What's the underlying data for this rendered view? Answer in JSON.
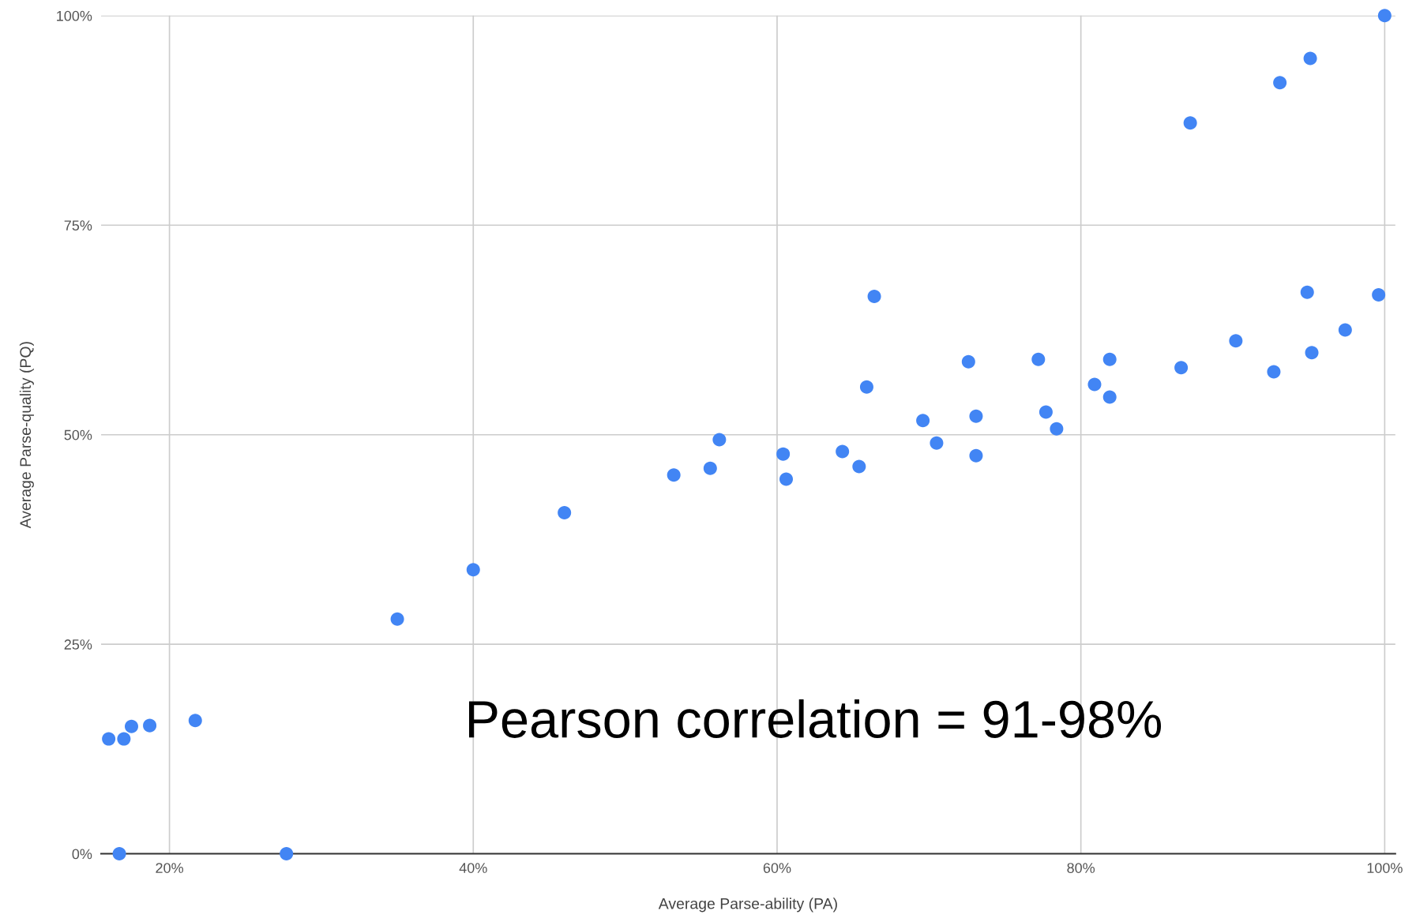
{
  "chart_data": {
    "type": "scatter",
    "xlabel": "Average Parse-ability (PA)",
    "ylabel": "Average Parse-quality (PQ)",
    "x": [
      16.0,
      17.0,
      17.5,
      18.7,
      21.7,
      16.7,
      27.7,
      35.0,
      40.0,
      46.0,
      53.2,
      55.6,
      56.2,
      60.4,
      60.6,
      64.3,
      65.4,
      65.9,
      66.4,
      69.6,
      70.5,
      72.6,
      73.1,
      73.1,
      77.2,
      77.7,
      78.4,
      80.9,
      81.9,
      81.9,
      86.6,
      87.2,
      90.2,
      92.7,
      93.1,
      94.9,
      95.1,
      95.2,
      97.4,
      99.6,
      100
    ],
    "values": [
      13.7,
      13.7,
      15.2,
      15.3,
      15.9,
      0,
      0,
      28.0,
      33.9,
      40.7,
      45.2,
      46.0,
      49.4,
      47.7,
      44.7,
      48.0,
      46.2,
      55.7,
      66.5,
      51.7,
      49.0,
      58.7,
      52.2,
      47.5,
      59.0,
      52.7,
      50.7,
      56.0,
      59.0,
      54.5,
      58.0,
      87.2,
      61.2,
      57.5,
      92.0,
      67.0,
      94.9,
      59.8,
      62.5,
      66.7,
      100
    ],
    "color": "#4285f4",
    "marker": "circle",
    "xlim": [
      15.5,
      100.7
    ],
    "xticks": [
      {
        "value": 20,
        "label": "20%"
      },
      {
        "value": 40,
        "label": "40%"
      },
      {
        "value": 60,
        "label": "60%"
      },
      {
        "value": 80,
        "label": "80%"
      },
      {
        "value": 100,
        "label": "100%"
      }
    ],
    "ylim": [
      0,
      100
    ],
    "yticks": [
      {
        "value": 0,
        "label": "0%"
      },
      {
        "value": 25,
        "label": "25%"
      },
      {
        "value": 50,
        "label": "50%"
      },
      {
        "value": 75,
        "label": "75%"
      },
      {
        "value": 100,
        "label": "100%"
      }
    ],
    "grid": true,
    "annotations": [
      "Pearson correlation = 91-98%"
    ]
  }
}
